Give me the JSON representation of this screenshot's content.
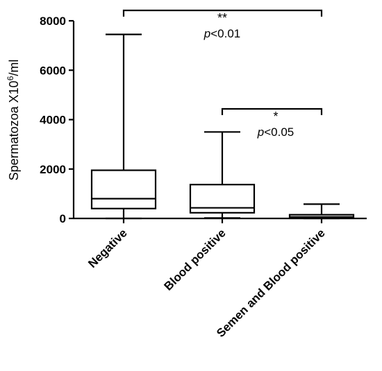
{
  "chart_data": {
    "type": "box",
    "ylabel": "Spermatozoa X10",
    "ylabel_sup": "6",
    "ylabel_unit": "/ml",
    "ylim": [
      0,
      8000
    ],
    "yticks": [
      0,
      2000,
      4000,
      6000,
      8000
    ],
    "ytick_labels": [
      "0",
      "2000",
      "4000",
      "6000",
      "8000"
    ],
    "categories": [
      "Negative",
      "Blood positive",
      "Semen and Blood positive"
    ],
    "boxes": [
      {
        "min": 0,
        "q1": 400,
        "median": 800,
        "q3": 1950,
        "max": 7450
      },
      {
        "min": 20,
        "q1": 230,
        "median": 430,
        "q3": 1370,
        "max": 3500
      },
      {
        "min": 0,
        "q1": 30,
        "median": 60,
        "q3": 150,
        "max": 580
      }
    ],
    "annotations": [
      {
        "from": 0,
        "to": 2,
        "stars": "**",
        "p_italic": "p",
        "p_rest": "<0.01",
        "level": 8400
      },
      {
        "from": 1,
        "to": 2,
        "stars": "*",
        "p_italic": "p",
        "p_rest": "<0.05",
        "level": 4500
      }
    ],
    "colors": {
      "stroke": "#000000",
      "background": "#ffffff"
    }
  }
}
